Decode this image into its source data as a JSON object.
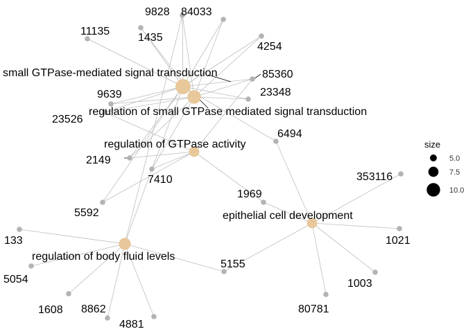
{
  "colors": {
    "term_node": "#E8C79A",
    "gene_node": "#B3B3B3",
    "edge": "#BDBDBD",
    "label": "#000000"
  },
  "terms": [
    {
      "id": "t1",
      "label": "small GTPase-mediated signal transduction",
      "size": 10
    },
    {
      "id": "t2",
      "label": "regulation of small GTPase mediated signal transduction",
      "size": 9
    },
    {
      "id": "t3",
      "label": "regulation of GTPase activity",
      "size": 7
    },
    {
      "id": "t4",
      "label": "epithelial cell development",
      "size": 7
    },
    {
      "id": "t5",
      "label": "regulation of body fluid levels",
      "size": 8
    }
  ],
  "genes": [
    "9828",
    "84033",
    "11135",
    "1435",
    "4254",
    "85360",
    "23348",
    "9639",
    "23526",
    "6494",
    "2149",
    "7410",
    "353116",
    "1969",
    "5592",
    "133",
    "5155",
    "1021",
    "5054",
    "1003",
    "1608",
    "8862",
    "4881",
    "80781"
  ],
  "edges": [
    [
      "t1",
      "9828"
    ],
    [
      "t1",
      "84033"
    ],
    [
      "t1",
      "11135"
    ],
    [
      "t1",
      "1435"
    ],
    [
      "t1",
      "4254"
    ],
    [
      "t1",
      "85360"
    ],
    [
      "t1",
      "23348"
    ],
    [
      "t1",
      "9639"
    ],
    [
      "t1",
      "23526"
    ],
    [
      "t1",
      "6494"
    ],
    [
      "t1",
      "2149"
    ],
    [
      "t1",
      "7410"
    ],
    [
      "t1",
      "5592"
    ],
    [
      "t2",
      "9828"
    ],
    [
      "t2",
      "84033"
    ],
    [
      "t2",
      "1435"
    ],
    [
      "t2",
      "4254"
    ],
    [
      "t2",
      "85360"
    ],
    [
      "t2",
      "23348"
    ],
    [
      "t2",
      "9639"
    ],
    [
      "t2",
      "23526"
    ],
    [
      "t2",
      "2149"
    ],
    [
      "t2",
      "7410"
    ],
    [
      "t3",
      "85360"
    ],
    [
      "t3",
      "23526"
    ],
    [
      "t3",
      "2149"
    ],
    [
      "t3",
      "7410"
    ],
    [
      "t3",
      "1969"
    ],
    [
      "t3",
      "5592"
    ],
    [
      "t4",
      "6494"
    ],
    [
      "t4",
      "353116"
    ],
    [
      "t4",
      "1969"
    ],
    [
      "t4",
      "5155"
    ],
    [
      "t4",
      "1021"
    ],
    [
      "t4",
      "1003"
    ],
    [
      "t4",
      "80781"
    ],
    [
      "t5",
      "9828"
    ],
    [
      "t5",
      "7410"
    ],
    [
      "t5",
      "133"
    ],
    [
      "t5",
      "5054"
    ],
    [
      "t5",
      "1608"
    ],
    [
      "t5",
      "8862"
    ],
    [
      "t5",
      "4881"
    ],
    [
      "t5",
      "5155"
    ]
  ],
  "legend": {
    "title": "size",
    "entries": [
      {
        "label": "5.0",
        "value": 5
      },
      {
        "label": "7.5",
        "value": 7.5
      },
      {
        "label": "10.0",
        "value": 10
      }
    ]
  }
}
